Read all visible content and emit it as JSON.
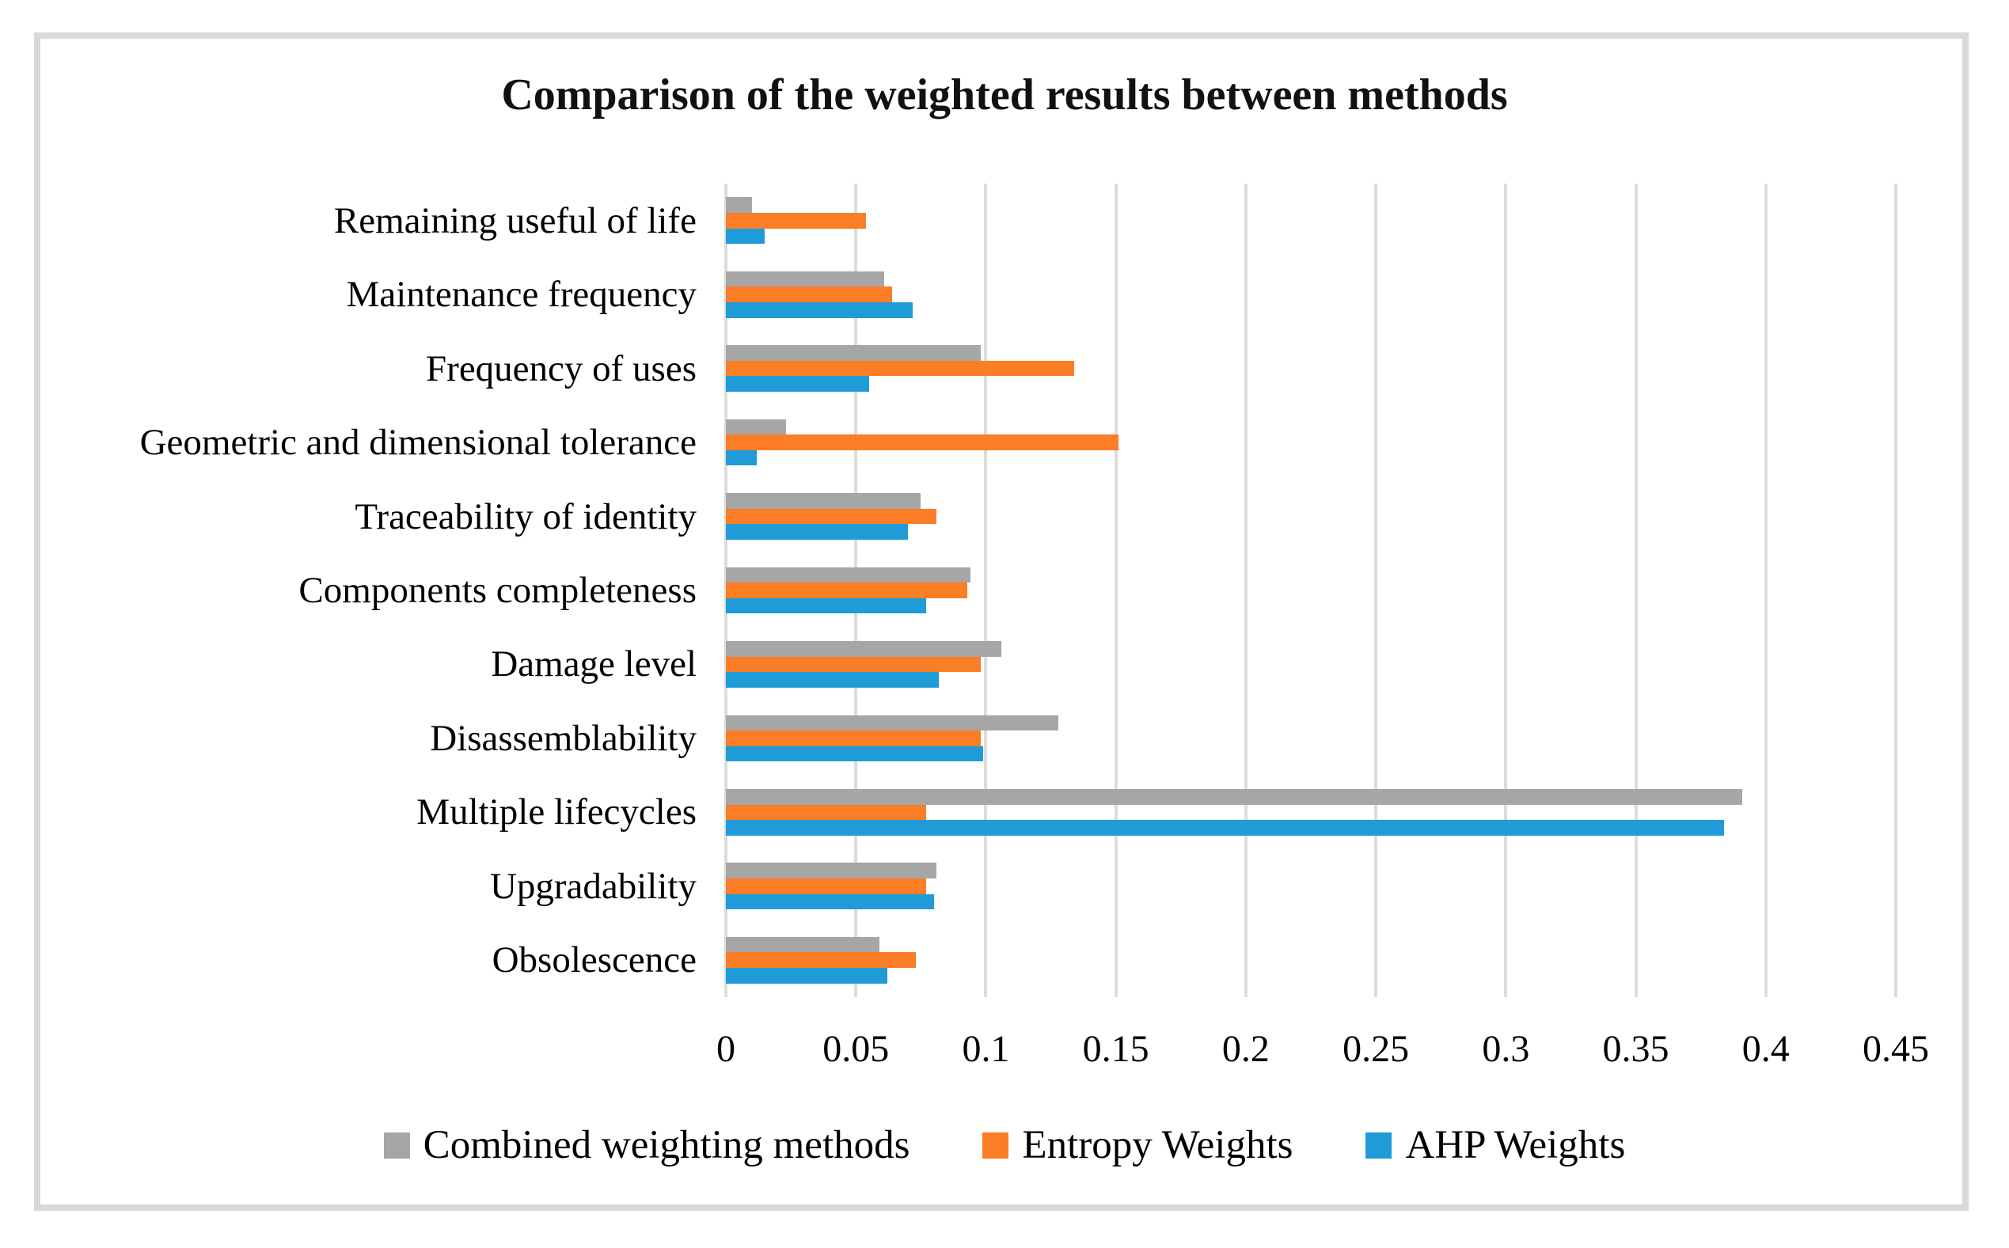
{
  "figure": {
    "title": "Comparison of the weighted results between methods"
  },
  "chart_data": {
    "type": "bar",
    "orientation": "horizontal",
    "title": "Comparison of the weighted results between methods",
    "categories": [
      "Remaining useful of life",
      "Maintenance frequency",
      "Frequency of uses",
      "Geometric and dimensional tolerance",
      "Traceability of identity",
      "Components completeness",
      "Damage level",
      "Disassemblability",
      "Multiple lifecycles",
      "Upgradability",
      "Obsolescence"
    ],
    "series": [
      {
        "name": "Combined weighting methods",
        "key": "combined",
        "color": "#A6A6A6",
        "values": [
          0.01,
          0.061,
          0.098,
          0.023,
          0.075,
          0.094,
          0.106,
          0.128,
          0.391,
          0.081,
          0.059
        ]
      },
      {
        "name": "Entropy Weights",
        "key": "entropy",
        "color": "#FB7D26",
        "values": [
          0.054,
          0.064,
          0.134,
          0.151,
          0.081,
          0.093,
          0.098,
          0.098,
          0.077,
          0.077,
          0.073
        ]
      },
      {
        "name": "AHP Weights",
        "key": "ahp",
        "color": "#1F9BD7",
        "values": [
          0.015,
          0.072,
          0.055,
          0.012,
          0.07,
          0.077,
          0.082,
          0.099,
          0.384,
          0.08,
          0.062
        ]
      }
    ],
    "xlim": [
      0,
      0.45
    ],
    "x_ticks": [
      "0",
      "0.05",
      "0.1",
      "0.15",
      "0.2",
      "0.25",
      "0.3",
      "0.35",
      "0.4",
      "0.45"
    ],
    "x_tick_values": [
      0,
      0.05,
      0.1,
      0.15,
      0.2,
      0.25,
      0.3,
      0.35,
      0.4,
      0.45
    ],
    "grid": true,
    "legend_position": "bottom",
    "bar_order_note": "within each category group, bars top-to-bottom are: combined, entropy, ahp"
  }
}
